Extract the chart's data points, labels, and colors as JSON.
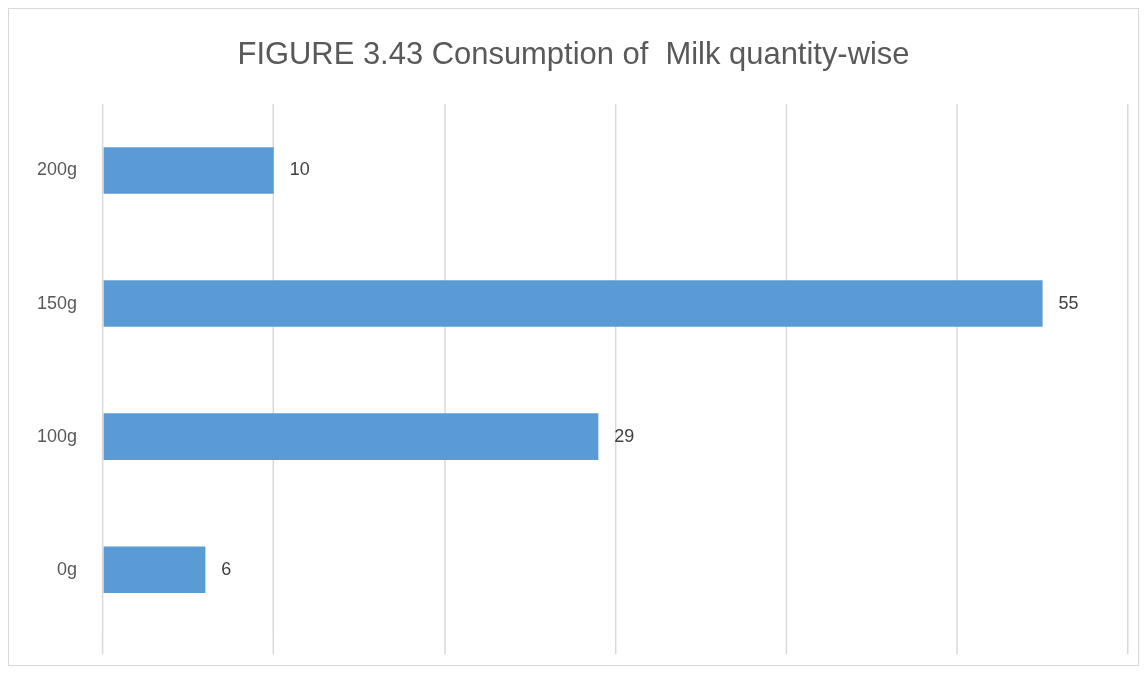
{
  "chart_data": {
    "type": "bar",
    "orientation": "horizontal",
    "title": "FIGURE 3.43 Consumption of  Milk quantity-wise",
    "categories": [
      "200g",
      "150g",
      "100g",
      "0g"
    ],
    "values": [
      10,
      55,
      29,
      6
    ],
    "color": "#5b9bd5",
    "xlim": [
      0,
      60
    ],
    "xticks": [
      {
        "value": 0,
        "label": null
      },
      {
        "value": 10,
        "label": null
      },
      {
        "value": 20,
        "label": null
      },
      {
        "value": 30,
        "label": null
      },
      {
        "value": 40,
        "label": null
      },
      {
        "value": 50,
        "label": null
      },
      {
        "value": 60,
        "label": null
      }
    ],
    "grid": "x",
    "tick_labels": "y",
    "data_labels": true,
    "legend": false
  }
}
